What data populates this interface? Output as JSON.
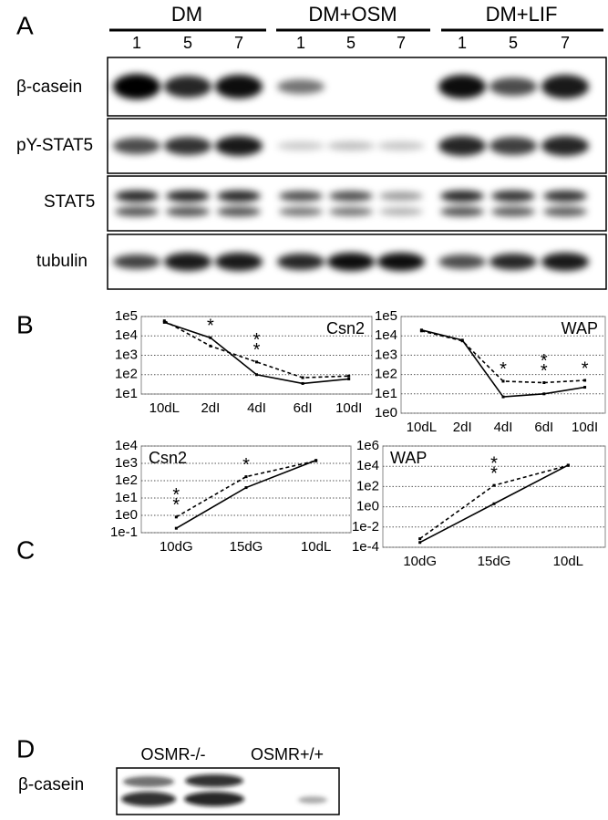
{
  "panel_labels": [
    "A",
    "B",
    "C",
    "D"
  ],
  "blot_a": {
    "groups": [
      "DM",
      "DM+OSM",
      "DM+LIF"
    ],
    "lanes": [
      "1",
      "5",
      "7",
      "1",
      "5",
      "7",
      "1",
      "5",
      "7"
    ],
    "rows": [
      "β-casein",
      "pY-STAT5",
      "STAT5",
      "tubulin"
    ]
  },
  "blot_d": {
    "groups": [
      "OSMR-/-",
      "OSMR+/+"
    ],
    "rows": [
      "β-casein"
    ]
  },
  "chart_data": [
    {
      "type": "line",
      "title": "Csn2",
      "title_corner": "top-right",
      "log": true,
      "grid": true,
      "categories": [
        "10dL",
        "2dI",
        "4dI",
        "6dI",
        "10dI"
      ],
      "ylim": [
        10,
        100000
      ],
      "yticks": [
        {
          "value": 10,
          "label": "1e1"
        },
        {
          "value": 100,
          "label": "1e2"
        },
        {
          "value": 1000,
          "label": "1e3"
        },
        {
          "value": 10000,
          "label": "1e4"
        },
        {
          "value": 100000,
          "label": "1e5"
        }
      ],
      "series": [
        {
          "style": "solid",
          "color": "#000000",
          "values": [
            50000,
            8000,
            100,
            35,
            60
          ]
        },
        {
          "style": "dashed",
          "color": "#000000",
          "values": [
            60000,
            3000,
            450,
            70,
            85
          ]
        }
      ],
      "annotations": [
        {
          "text": "*",
          "category": "2dI"
        },
        {
          "text": "*",
          "category": "4dI"
        },
        {
          "text": "*",
          "category": "4dI"
        }
      ]
    },
    {
      "type": "line",
      "title": "WAP",
      "title_corner": "top-right",
      "log": true,
      "grid": true,
      "categories": [
        "10dL",
        "2dI",
        "4dI",
        "6dI",
        "10dI"
      ],
      "ylim": [
        1,
        100000
      ],
      "yticks": [
        {
          "value": 1,
          "label": "1e0"
        },
        {
          "value": 10,
          "label": "1e1"
        },
        {
          "value": 100,
          "label": "1e2"
        },
        {
          "value": 1000,
          "label": "1e3"
        },
        {
          "value": 10000,
          "label": "1e4"
        },
        {
          "value": 100000,
          "label": "1e5"
        }
      ],
      "series": [
        {
          "style": "solid",
          "color": "#000000",
          "values": [
            20000,
            6000,
            7,
            10,
            22
          ]
        },
        {
          "style": "dashed",
          "color": "#000000",
          "values": [
            18000,
            5500,
            45,
            38,
            50
          ]
        }
      ],
      "annotations": [
        {
          "text": "*",
          "category": "4dI"
        },
        {
          "text": "*",
          "category": "6dI"
        },
        {
          "text": "*",
          "category": "6dI"
        },
        {
          "text": "*",
          "category": "10dI"
        }
      ]
    },
    {
      "type": "line",
      "title": "Csn2",
      "title_corner": "top-left",
      "log": true,
      "grid": true,
      "categories": [
        "10dG",
        "15dG",
        "10dL"
      ],
      "ylim": [
        0.1,
        10000
      ],
      "yticks": [
        {
          "value": 0.1,
          "label": "1e-1"
        },
        {
          "value": 1,
          "label": "1e0"
        },
        {
          "value": 10,
          "label": "1e1"
        },
        {
          "value": 100,
          "label": "1e2"
        },
        {
          "value": 1000,
          "label": "1e3"
        },
        {
          "value": 10000,
          "label": "1e4"
        }
      ],
      "series": [
        {
          "style": "solid",
          "color": "#000000",
          "values": [
            0.18,
            40,
            1500
          ]
        },
        {
          "style": "dashed",
          "color": "#000000",
          "values": [
            0.8,
            170,
            1400
          ]
        }
      ],
      "annotations": [
        {
          "text": "*",
          "category": "10dG"
        },
        {
          "text": "*",
          "category": "10dG"
        },
        {
          "text": "*",
          "category": "15dG"
        }
      ]
    },
    {
      "type": "line",
      "title": "WAP",
      "title_corner": "top-left",
      "log": true,
      "grid": true,
      "categories": [
        "10dG",
        "15dG",
        "10dL"
      ],
      "ylim": [
        0.0001,
        1000000
      ],
      "yticks": [
        {
          "value": 0.0001,
          "label": "1e-4"
        },
        {
          "value": 0.01,
          "label": "1e-2"
        },
        {
          "value": 1,
          "label": "1e0"
        },
        {
          "value": 100,
          "label": "1e2"
        },
        {
          "value": 10000,
          "label": "1e4"
        },
        {
          "value": 1000000,
          "label": "1e6"
        }
      ],
      "series": [
        {
          "style": "solid",
          "color": "#000000",
          "values": [
            0.0003,
            2,
            13000
          ]
        },
        {
          "style": "dashed",
          "color": "#000000",
          "values": [
            0.0007,
            130,
            12000
          ]
        }
      ],
      "annotations": [
        {
          "text": "*",
          "category": "15dG"
        },
        {
          "text": "*",
          "category": "15dG"
        }
      ]
    }
  ]
}
